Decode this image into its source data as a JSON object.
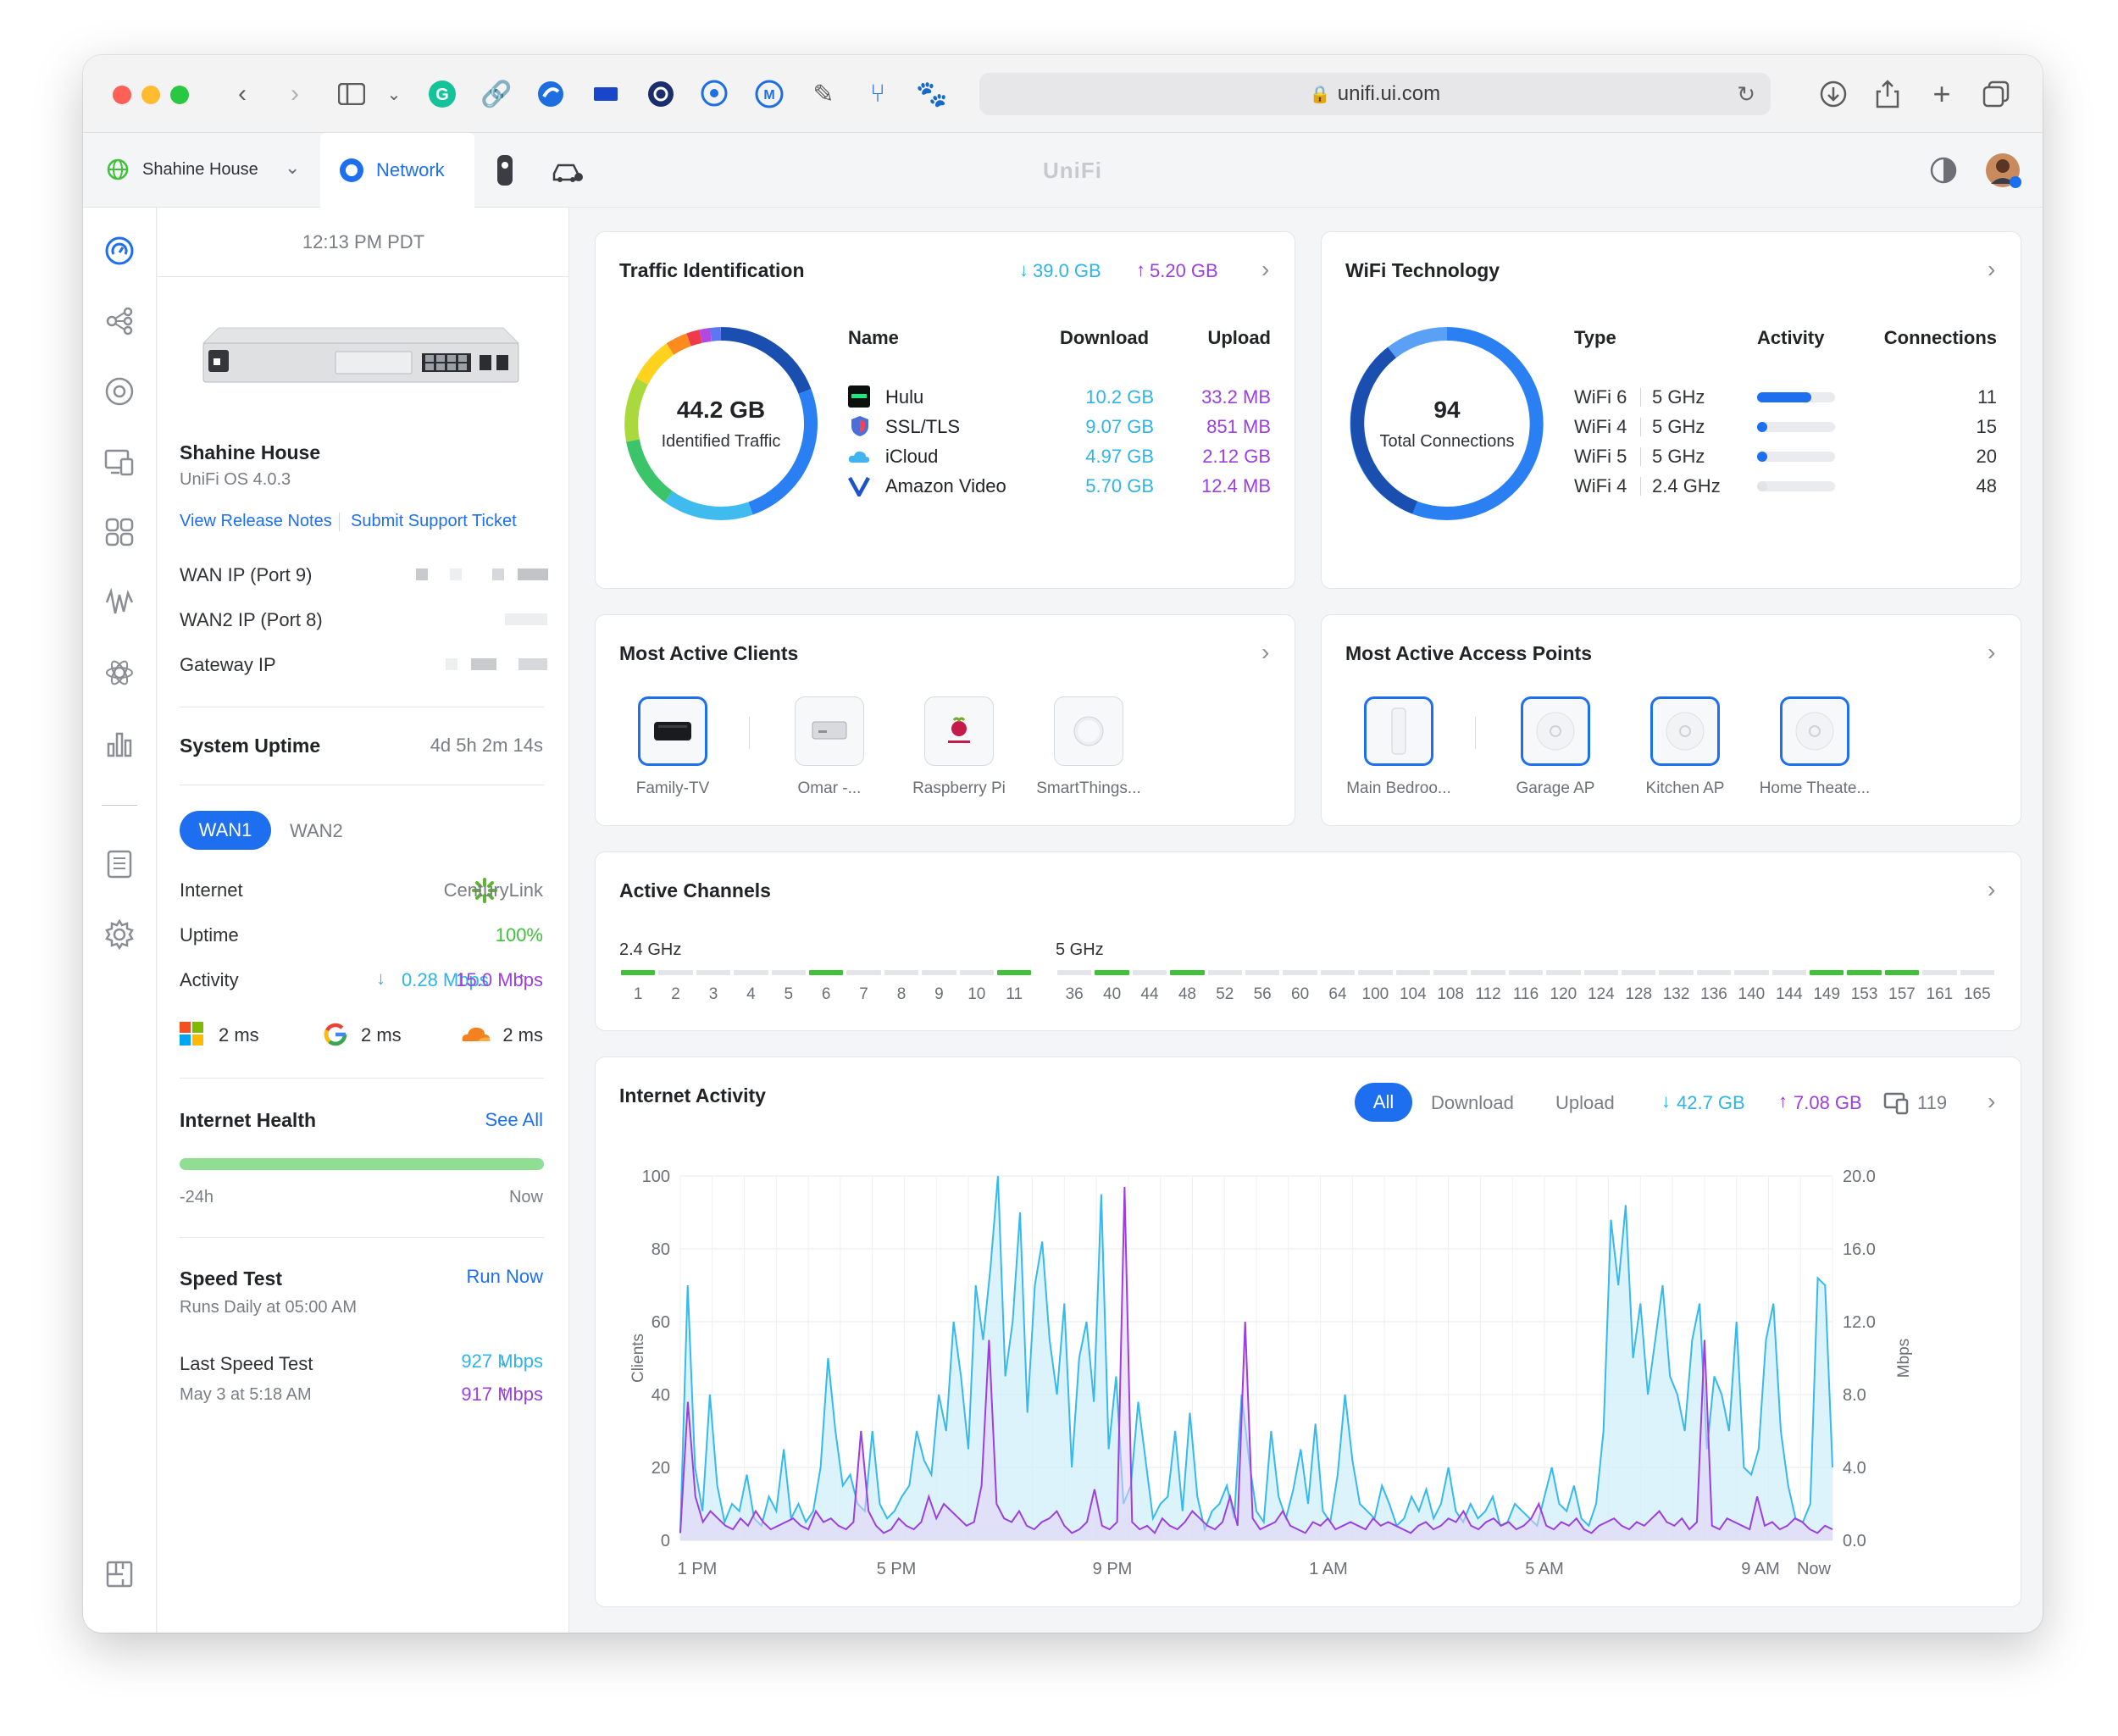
{
  "browser": {
    "url": "unifi.ui.com",
    "app_title": "UniFi"
  },
  "tabs": {
    "site": "Shahine House",
    "network": "Network"
  },
  "device": {
    "time": "12:13 PM PDT",
    "name": "Shahine House",
    "os": "UniFi OS 4.0.3",
    "release_notes": "View Release Notes",
    "support": "Submit Support Ticket",
    "wan_ip_label": "WAN IP (Port 9)",
    "wan2_ip_label": "WAN2 IP (Port 8)",
    "gateway_label": "Gateway IP",
    "uptime_label": "System Uptime",
    "uptime_value": "4d 5h 2m 14s",
    "wan1": "WAN1",
    "wan2": "WAN2",
    "internet_label": "Internet",
    "isp": "CenturyLink",
    "uptime2_label": "Uptime",
    "uptime2_value": "100%",
    "activity_label": "Activity",
    "activity_down": "0.28 Mbps",
    "activity_up": "15.0 Mbps",
    "lat_ms": "2 ms",
    "lat_google": "2 ms",
    "lat_cf": "2 ms",
    "health_label": "Internet Health",
    "see_all": "See All",
    "health_start": "-24h",
    "health_end": "Now",
    "speed_label": "Speed Test",
    "run_now": "Run Now",
    "speed_schedule": "Runs Daily at 05:00 AM",
    "last_speed_label": "Last Speed Test",
    "last_speed_date": "May 3 at 5:18 AM",
    "last_down": "927 Mbps",
    "last_up": "917 Mbps"
  },
  "traffic": {
    "title": "Traffic Identification",
    "down": "39.0 GB",
    "up": "5.20 GB",
    "total": "44.2 GB",
    "total_label": "Identified Traffic",
    "col_name": "Name",
    "col_download": "Download",
    "col_upload": "Upload",
    "rows": [
      {
        "name": "Hulu",
        "download": "10.2 GB",
        "upload": "33.2 MB"
      },
      {
        "name": "SSL/TLS",
        "download": "9.07 GB",
        "upload": "851 MB"
      },
      {
        "name": "iCloud",
        "download": "4.97 GB",
        "upload": "2.12 GB"
      },
      {
        "name": "Amazon Video",
        "download": "5.70 GB",
        "upload": "12.4 MB"
      }
    ]
  },
  "wifi": {
    "title": "WiFi Technology",
    "total": "94",
    "total_label": "Total Connections",
    "col_type": "Type",
    "col_activity": "Activity",
    "col_connections": "Connections",
    "rows": [
      {
        "std": "WiFi 6",
        "band": "5 GHz",
        "activity": 0.7,
        "connections": "11"
      },
      {
        "std": "WiFi 4",
        "band": "5 GHz",
        "activity": 0.12,
        "connections": "15"
      },
      {
        "std": "WiFi 5",
        "band": "5 GHz",
        "activity": 0.1,
        "connections": "20"
      },
      {
        "std": "WiFi 4",
        "band": "2.4 GHz",
        "activity": 0.02,
        "connections": "48"
      }
    ]
  },
  "clients": {
    "title": "Most Active Clients",
    "items": [
      "Family-TV",
      "Omar -...",
      "Raspberry Pi",
      "SmartThings..."
    ]
  },
  "aps": {
    "title": "Most Active Access Points",
    "items": [
      "Main Bedroo...",
      "Garage AP",
      "Kitchen AP",
      "Home Theate..."
    ]
  },
  "channels": {
    "title": "Active Channels",
    "band24": "2.4 GHz",
    "band5": "5 GHz",
    "ch24": [
      "1",
      "2",
      "3",
      "4",
      "5",
      "6",
      "7",
      "8",
      "9",
      "10",
      "11"
    ],
    "ch24_active": [
      "1",
      "6",
      "11"
    ],
    "ch5": [
      "36",
      "40",
      "44",
      "48",
      "52",
      "56",
      "60",
      "64",
      "100",
      "104",
      "108",
      "112",
      "116",
      "120",
      "124",
      "128",
      "132",
      "136",
      "140",
      "144",
      "149",
      "153",
      "157",
      "161",
      "165"
    ],
    "ch5_active": [
      "40",
      "48",
      "149",
      "153",
      "157"
    ]
  },
  "activity": {
    "title": "Internet Activity",
    "filter_all": "All",
    "filter_download": "Download",
    "filter_upload": "Upload",
    "down": "42.7 GB",
    "up": "7.08 GB",
    "clients": "119"
  },
  "chart_data": {
    "type": "area",
    "xlabel": "",
    "ylabel": "Clients",
    "y2label": "Mbps",
    "ylim": [
      0,
      100
    ],
    "y2lim": [
      0,
      20
    ],
    "yticks": [
      "100",
      "80",
      "60",
      "40",
      "20",
      "0"
    ],
    "y2ticks": [
      "20.0",
      "16.0",
      "12.0",
      "8.0",
      "4.0",
      "0.0"
    ],
    "xticks": [
      "1 PM",
      "5 PM",
      "9 PM",
      "1 AM",
      "5 AM",
      "9 AM",
      "Now"
    ],
    "grid": true,
    "series": [
      {
        "values": [
          2,
          70,
          20,
          8,
          40,
          15,
          5,
          10,
          8,
          18,
          6,
          4,
          12,
          8,
          25,
          6,
          10,
          5,
          8,
          20,
          50,
          30,
          15,
          18,
          10,
          8,
          30,
          10,
          6,
          8,
          12,
          15,
          30,
          22,
          18,
          40,
          30,
          60,
          45,
          25,
          70,
          55,
          75,
          100,
          45,
          60,
          90,
          35,
          70,
          82,
          55,
          40,
          65,
          20,
          50,
          60,
          38,
          95,
          25,
          45,
          10,
          15,
          38,
          22,
          6,
          10,
          12,
          30,
          8,
          35,
          12,
          3,
          8,
          10,
          15,
          6,
          40,
          22,
          8,
          5,
          30,
          12,
          6,
          14,
          25,
          10,
          32,
          8,
          5,
          18,
          40,
          22,
          10,
          8,
          6,
          15,
          10,
          4,
          6,
          12,
          8,
          14,
          6,
          10,
          20,
          8,
          5,
          10,
          6,
          8,
          12,
          4,
          5,
          10,
          8,
          6,
          4,
          12,
          20,
          10,
          8,
          15,
          6,
          4,
          10,
          30,
          88,
          70,
          92,
          50,
          65,
          40,
          55,
          70,
          45,
          40,
          30,
          55,
          65,
          25,
          45,
          40,
          30,
          60,
          20,
          18,
          25,
          55,
          65,
          30,
          15,
          6,
          5,
          10,
          72,
          70,
          20
        ]
      },
      {
        "values": [
          2,
          38,
          12,
          5,
          8,
          6,
          4,
          3,
          6,
          4,
          8,
          5,
          3,
          4,
          5,
          6,
          4,
          3,
          8,
          5,
          6,
          4,
          3,
          5,
          30,
          8,
          4,
          2,
          3,
          6,
          4,
          3,
          5,
          12,
          6,
          10,
          8,
          6,
          4,
          5,
          15,
          55,
          10,
          6,
          5,
          8,
          4,
          3,
          5,
          6,
          8,
          4,
          2,
          3,
          5,
          14,
          4,
          3,
          5,
          97,
          5,
          3,
          4,
          2,
          6,
          4,
          3,
          5,
          8,
          6,
          4,
          3,
          5,
          12,
          4,
          60,
          6,
          3,
          4,
          5,
          8,
          4,
          3,
          2,
          5,
          4,
          6,
          3,
          4,
          5,
          4,
          3,
          6,
          4,
          5,
          4,
          3,
          2,
          4,
          5,
          3,
          4,
          6,
          5,
          8,
          4,
          3,
          5,
          6,
          4,
          5,
          3,
          4,
          6,
          10,
          4,
          3,
          5,
          4,
          6,
          3,
          2,
          4,
          5,
          6,
          4,
          3,
          5,
          4,
          6,
          8,
          5,
          4,
          6,
          3,
          5,
          55,
          4,
          3,
          6,
          5,
          4,
          3,
          12,
          4,
          5,
          3,
          4,
          6,
          5,
          3,
          2,
          4,
          3
        ]
      }
    ]
  }
}
